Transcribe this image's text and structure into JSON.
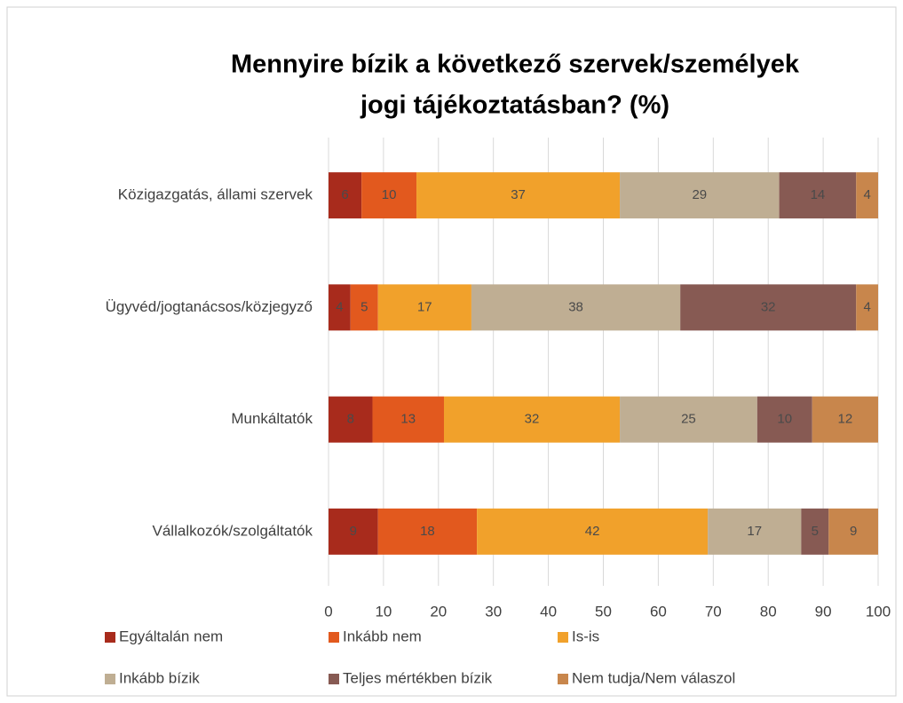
{
  "chart_data": {
    "type": "stacked_barh",
    "title": [
      "Mennyire bízik a következő szervek/személyek",
      "jogi tájékoztatásban? (%)"
    ],
    "categories": [
      "Közigazgatás, állami szervek",
      "Ügyvéd/jogtanácsos/közjegyző",
      "Munkáltatók",
      "Vállalkozók/szolgáltatók"
    ],
    "series": [
      {
        "name": "Egyáltalán nem",
        "color": "#a82b1c",
        "values": [
          6,
          4,
          8,
          9
        ]
      },
      {
        "name": "Inkább nem",
        "color": "#e2591e",
        "values": [
          10,
          5,
          13,
          18
        ]
      },
      {
        "name": "Is-is",
        "color": "#f1a12b",
        "values": [
          37,
          17,
          32,
          42
        ]
      },
      {
        "name": "Inkább bízik",
        "color": "#bfae93",
        "values": [
          29,
          38,
          25,
          17
        ]
      },
      {
        "name": "Teljes mértékben bízik",
        "color": "#875a53",
        "values": [
          14,
          32,
          10,
          5
        ]
      },
      {
        "name": "Nem tudja/Nem válaszol",
        "color": "#c8864c",
        "values": [
          4,
          4,
          12,
          9
        ]
      }
    ],
    "xlim": [
      0,
      100
    ],
    "xticks": [
      0,
      10,
      20,
      30,
      40,
      50,
      60,
      70,
      80,
      90,
      100
    ],
    "grid": true,
    "legend": "bottom"
  }
}
